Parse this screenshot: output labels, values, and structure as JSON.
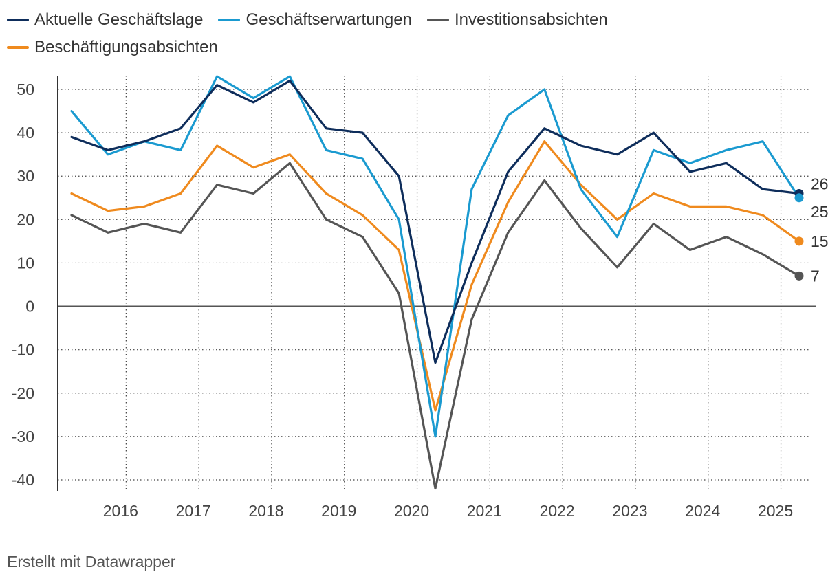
{
  "chart_data": {
    "type": "line",
    "title": "",
    "xlabel": "",
    "ylabel": "",
    "ylim": [
      -40,
      50
    ],
    "yticks": [
      50,
      40,
      30,
      20,
      10,
      0,
      -10,
      -20,
      -30,
      -40
    ],
    "ytick_labels": [
      "50",
      "40",
      "30",
      "20",
      "10",
      "0",
      "-10",
      "-20",
      "-30",
      "-40"
    ],
    "xticks": [
      "2016",
      "2017",
      "2018",
      "2019",
      "2020",
      "2021",
      "2022",
      "2023",
      "2024",
      "2025"
    ],
    "grid": true,
    "x": [
      "2015 H1",
      "2015 H2",
      "2016 H1",
      "2016 H2",
      "2017 H1",
      "2017 H2",
      "2018 H1",
      "2018 H2",
      "2019 H1",
      "2019 H2",
      "2020 H1",
      "2020 H2",
      "2021 H1",
      "2021 H2",
      "2022 H1",
      "2022 H2",
      "2023 H1",
      "2023 H2",
      "2024 H1",
      "2024 H2",
      "2025 H1"
    ],
    "series": [
      {
        "name": "Aktuelle Geschäftslage",
        "color": "#0e2d5b",
        "values": [
          39,
          36,
          38,
          41,
          51,
          47,
          52,
          41,
          40,
          30,
          -13,
          10,
          31,
          41,
          37,
          35,
          40,
          31,
          33,
          27,
          26
        ],
        "end_label": "26"
      },
      {
        "name": "Geschäftserwartungen",
        "color": "#1a9ad0",
        "values": [
          45,
          35,
          38,
          36,
          53,
          48,
          53,
          36,
          34,
          20,
          -30,
          27,
          44,
          50,
          27,
          16,
          36,
          33,
          36,
          38,
          25
        ],
        "end_label": "25"
      },
      {
        "name": "Investitionsabsichten",
        "color": "#555555",
        "values": [
          21,
          17,
          19,
          17,
          28,
          26,
          33,
          20,
          16,
          3,
          -42,
          -3,
          17,
          29,
          18,
          9,
          19,
          13,
          16,
          12,
          7
        ],
        "end_label": "7"
      },
      {
        "name": "Beschäftigungsabsichten",
        "color": "#ef8a1e",
        "values": [
          26,
          22,
          23,
          26,
          37,
          32,
          35,
          26,
          21,
          13,
          -24,
          5,
          24,
          38,
          28,
          20,
          26,
          23,
          23,
          21,
          15
        ],
        "end_label": "15"
      }
    ]
  },
  "footer": {
    "credit": "Erstellt mit Datawrapper"
  }
}
